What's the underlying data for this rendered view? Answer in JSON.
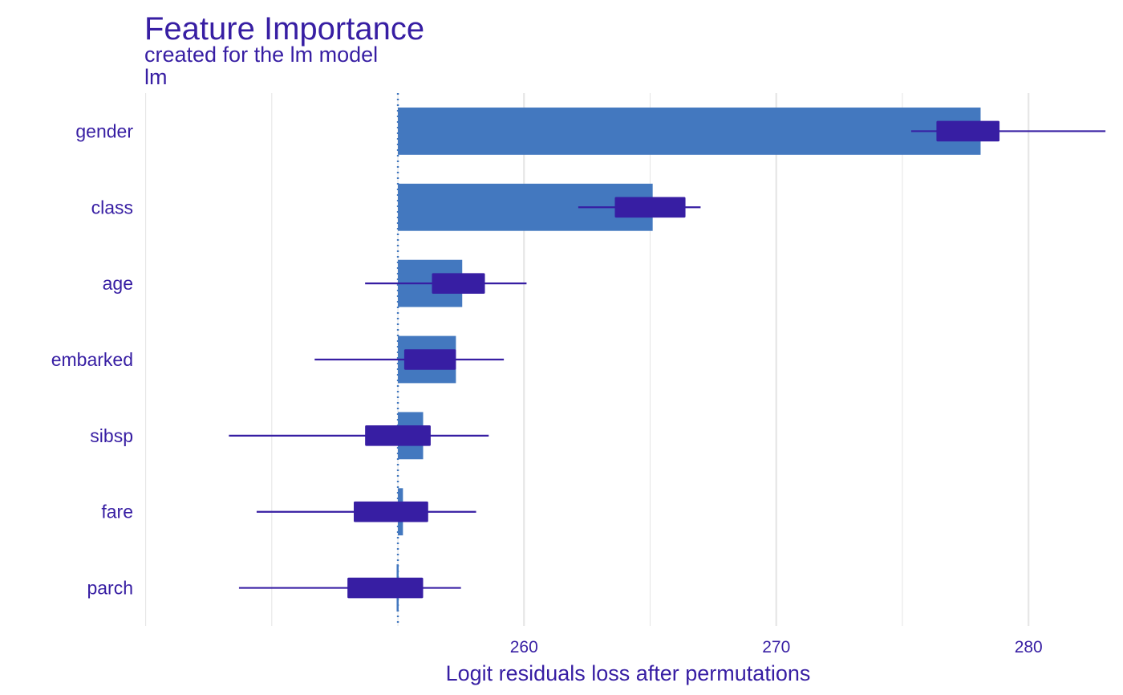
{
  "chart_data": {
    "type": "bar",
    "title": "Feature Importance",
    "subtitle": "created for the lm model",
    "model_label": "lm",
    "xlabel": "Logit residuals loss after permutations",
    "ylabel": "",
    "xlim": [
      244.95,
      283.3
    ],
    "xticks": [
      260,
      270,
      280
    ],
    "baseline": 255.0,
    "grid": "vertical",
    "colors": {
      "bar": "#4378bf",
      "box": "#371ea3",
      "whisker": "#371ea3",
      "baseline": "#4378bf",
      "grid": "#e6e6e6",
      "text": "#371ea3"
    },
    "categories": [
      "gender",
      "class",
      "age",
      "embarked",
      "sibsp",
      "fare",
      "parch"
    ],
    "bars": [
      278.1,
      265.1,
      257.55,
      257.3,
      256.0,
      255.2,
      254.95
    ],
    "boxes": [
      {
        "min": 275.35,
        "q1": 276.35,
        "q3": 278.85,
        "max": 283.05
      },
      {
        "min": 262.15,
        "q1": 263.6,
        "q3": 266.4,
        "max": 267.0
      },
      {
        "min": 253.7,
        "q1": 256.35,
        "q3": 258.45,
        "max": 260.1
      },
      {
        "min": 251.7,
        "q1": 255.25,
        "q3": 257.3,
        "max": 259.2
      },
      {
        "min": 248.3,
        "q1": 253.7,
        "q3": 256.3,
        "max": 258.6
      },
      {
        "min": 249.4,
        "q1": 253.25,
        "q3": 256.2,
        "max": 258.1
      },
      {
        "min": 248.7,
        "q1": 253.0,
        "q3": 256.0,
        "max": 257.5
      }
    ]
  }
}
